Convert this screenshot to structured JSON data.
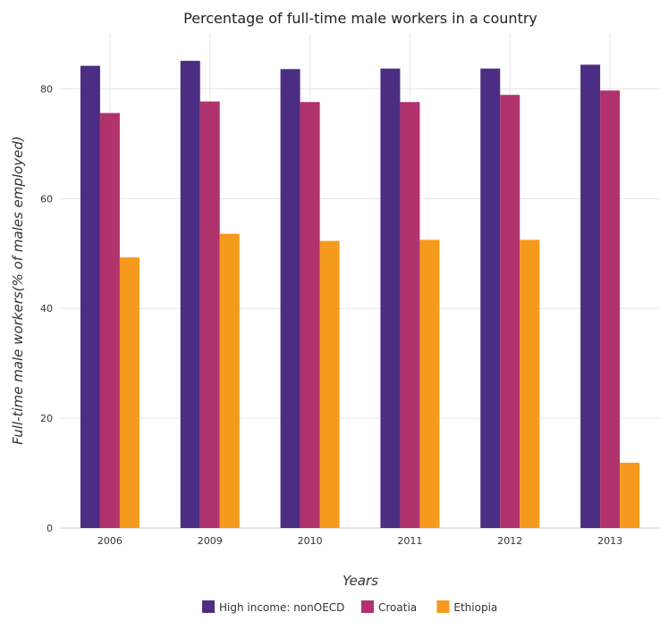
{
  "chart_data": {
    "type": "bar",
    "title": "Percentage of full-time male workers in a country",
    "xlabel": "Years",
    "ylabel": "Full-time male workers(% of males employed)",
    "categories": [
      "2006",
      "2009",
      "2010",
      "2011",
      "2012",
      "2013"
    ],
    "ylim": [
      0,
      90
    ],
    "yticks": [
      0,
      20,
      40,
      60,
      80
    ],
    "grid": true,
    "legend_position": "bottom",
    "series": [
      {
        "name": "High income: nonOECD",
        "color": "#4b2e83",
        "values": [
          84.2,
          85.1,
          83.6,
          83.7,
          83.7,
          84.4
        ]
      },
      {
        "name": "Croatia",
        "color": "#b0336e",
        "values": [
          75.6,
          77.7,
          77.6,
          77.6,
          78.9,
          79.7
        ]
      },
      {
        "name": "Ethiopia",
        "color": "#f59a1c",
        "values": [
          49.3,
          53.6,
          52.3,
          52.5,
          52.5,
          11.9
        ]
      }
    ]
  }
}
